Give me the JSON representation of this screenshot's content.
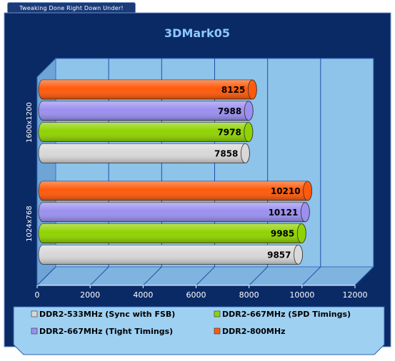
{
  "tagline": "Tweaking Done Right Down Under!",
  "colors": {
    "background": "#0a2a66",
    "border": "#6f8fc9",
    "plot_area": "#8ec3ea",
    "floor": "#7fb4e0",
    "gridline": "#1f4fa6",
    "legend_bg": "#9ed0f2",
    "title": "#8ec8ff"
  },
  "chart_data": {
    "type": "bar",
    "orientation": "horizontal",
    "style": "3d-cylinder",
    "title": "3DMark05",
    "xlabel": "",
    "ylabel": "",
    "xlim": [
      0,
      12000
    ],
    "xticks": [
      "0",
      "2000",
      "4000",
      "6000",
      "8000",
      "10000",
      "12000"
    ],
    "grid": true,
    "legend_position": "bottom",
    "categories": [
      "1600x1200",
      "1024x768"
    ],
    "series": [
      {
        "name": "DDR2-800MHz",
        "color": "#ff5a0a",
        "values": [
          8125,
          10210
        ]
      },
      {
        "name": "DDR2-667MHz (Tight Timings)",
        "color": "#9b8ff0",
        "values": [
          7988,
          10121
        ]
      },
      {
        "name": "DDR2-667MHz (SPD Timings)",
        "color": "#8fd300",
        "values": [
          7978,
          9985
        ]
      },
      {
        "name": "DDR2-533MHz (Sync with FSB)",
        "color": "#d8d8d8",
        "values": [
          7858,
          9857
        ]
      }
    ],
    "legend_order": [
      "DDR2-533MHz (Sync with FSB)",
      "DDR2-667MHz (SPD Timings)",
      "DDR2-667MHz (Tight Timings)",
      "DDR2-800MHz"
    ]
  }
}
